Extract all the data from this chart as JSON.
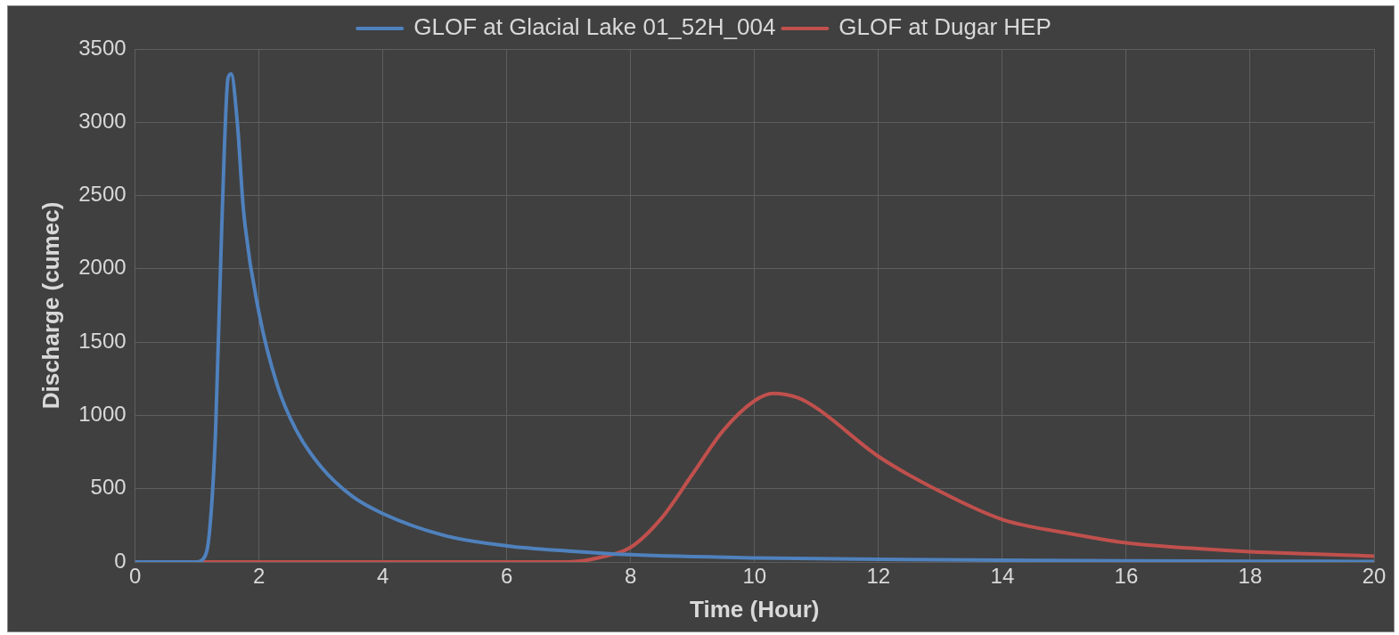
{
  "chart_data": {
    "type": "line",
    "xlabel": "Time (Hour)",
    "ylabel": "Discharge (cumec)",
    "xlim": [
      0,
      20
    ],
    "xticks": [
      0,
      2,
      4,
      6,
      8,
      10,
      12,
      14,
      16,
      18,
      20
    ],
    "ylim": [
      0,
      3500
    ],
    "yticks": [
      0,
      500,
      1000,
      1500,
      2000,
      2500,
      3000,
      3500
    ],
    "grid": true,
    "legend": "top",
    "marker": "none",
    "line_style": "solid",
    "series": [
      {
        "name": "GLOF at Glacial Lake 01_52H_004",
        "color": "#4f81bd",
        "x": [
          0,
          1,
          1.1,
          1.2,
          1.3,
          1.4,
          1.5,
          1.55,
          1.65,
          1.75,
          2,
          2.3,
          2.6,
          3,
          3.5,
          4,
          5,
          6,
          7,
          8,
          10,
          12,
          14,
          16,
          18,
          20
        ],
        "values": [
          0,
          0,
          20,
          200,
          900,
          2300,
          3300,
          3330,
          3000,
          2400,
          1700,
          1200,
          900,
          650,
          450,
          330,
          180,
          110,
          75,
          50,
          28,
          18,
          12,
          8,
          5,
          3
        ]
      },
      {
        "name": "GLOF at Dugar HEP",
        "color": "#c0504d",
        "x": [
          0,
          7,
          7.5,
          8,
          8.5,
          9,
          9.5,
          10,
          10.3,
          10.7,
          11,
          12,
          13,
          14,
          15,
          16,
          17,
          18,
          19,
          20
        ],
        "values": [
          0,
          0,
          30,
          100,
          300,
          600,
          900,
          1100,
          1150,
          1120,
          1050,
          720,
          480,
          290,
          200,
          130,
          95,
          70,
          55,
          40
        ]
      }
    ]
  }
}
